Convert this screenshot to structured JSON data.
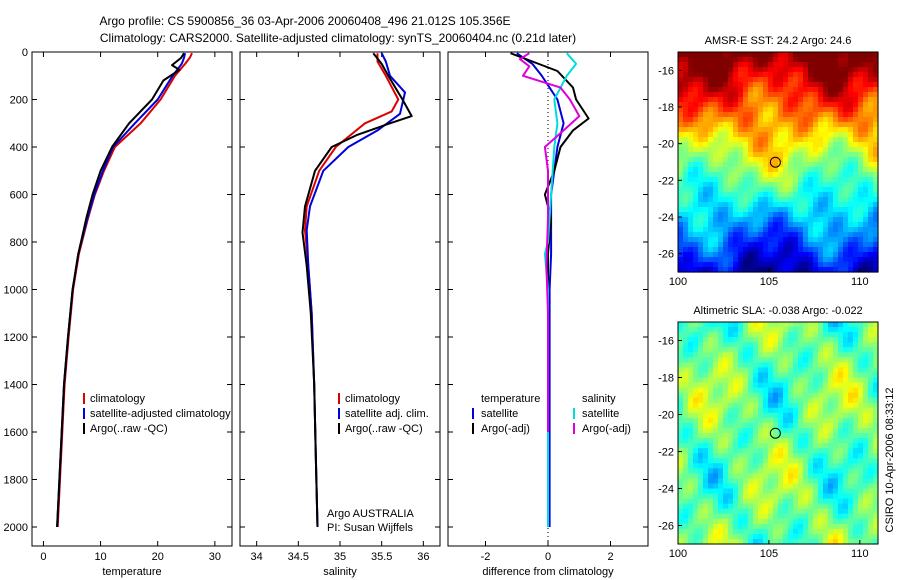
{
  "title": {
    "line1": "Argo profile: CS 5900856_36 03-Apr-2006 20060408_496 21.012S 105.356E",
    "line2": "Climatology: CARS2000. Satellite-adjusted climatology: synTS_20060404.nc (0.21d later)"
  },
  "side_label": "CSIRO 10-Apr-2006 08:33:12",
  "chart_data": [
    {
      "type": "line",
      "id": "temperature",
      "xlabel": "temperature",
      "ylabel": "",
      "xlim": [
        -2,
        33
      ],
      "ylim": [
        0,
        2080
      ],
      "y_reversed": true,
      "xticks": [
        0,
        10,
        20,
        30
      ],
      "xtick_labels": [
        "0",
        "10",
        "20",
        "30"
      ],
      "yticks": [
        0,
        200,
        400,
        600,
        800,
        1000,
        1200,
        1400,
        1600,
        1800,
        2000
      ],
      "ytick_labels": [
        "0",
        "200",
        "400",
        "600",
        "800",
        "1000",
        "1200",
        "1400",
        "1600",
        "1800",
        "2000"
      ],
      "legend": [
        "climatology",
        "satellite-adjusted climatology",
        "Argo(..raw -QC)"
      ],
      "series": [
        {
          "name": "climatology",
          "color": "#dd0000",
          "pairs": [
            [
              26.0,
              5
            ],
            [
              25.6,
              25
            ],
            [
              24.8,
              50
            ],
            [
              23.0,
              100
            ],
            [
              20.5,
              200
            ],
            [
              17.0,
              300
            ],
            [
              12.5,
              400
            ],
            [
              10.6,
              500
            ],
            [
              9.0,
              600
            ],
            [
              7.8,
              700
            ],
            [
              6.2,
              850
            ],
            [
              5.2,
              1000
            ],
            [
              4.4,
              1200
            ],
            [
              3.7,
              1400
            ],
            [
              3.3,
              1600
            ],
            [
              2.9,
              1800
            ],
            [
              2.5,
              2000
            ]
          ]
        },
        {
          "name": "satellite-adjusted climatology",
          "color": "#0000dd",
          "pairs": [
            [
              24.8,
              5
            ],
            [
              24.6,
              25
            ],
            [
              24.2,
              50
            ],
            [
              22.6,
              100
            ],
            [
              20.0,
              200
            ],
            [
              16.0,
              300
            ],
            [
              12.2,
              400
            ],
            [
              10.4,
              500
            ],
            [
              8.9,
              600
            ],
            [
              7.7,
              700
            ],
            [
              6.1,
              850
            ],
            [
              5.1,
              1000
            ],
            [
              4.3,
              1200
            ],
            [
              3.6,
              1400
            ],
            [
              3.2,
              1600
            ],
            [
              2.8,
              1800
            ],
            [
              2.4,
              2000
            ]
          ]
        },
        {
          "name": "Argo(..raw -QC)",
          "color": "#000000",
          "pairs": [
            [
              24.6,
              5
            ],
            [
              24.1,
              25
            ],
            [
              22.5,
              55
            ],
            [
              23.8,
              75
            ],
            [
              21.0,
              120
            ],
            [
              19.0,
              200
            ],
            [
              15.0,
              300
            ],
            [
              12.0,
              400
            ],
            [
              10.0,
              500
            ],
            [
              8.6,
              600
            ],
            [
              7.5,
              700
            ],
            [
              6.1,
              850
            ],
            [
              5.1,
              1000
            ],
            [
              4.3,
              1200
            ],
            [
              3.6,
              1400
            ],
            [
              3.2,
              1600
            ],
            [
              2.8,
              1800
            ],
            [
              2.4,
              2000
            ]
          ]
        }
      ]
    },
    {
      "type": "line",
      "id": "salinity",
      "xlabel": "salinity",
      "xlim": [
        33.8,
        36.2
      ],
      "ylim": [
        0,
        2080
      ],
      "y_reversed": true,
      "xticks": [
        34,
        34.5,
        35,
        35.5,
        36
      ],
      "xtick_labels": [
        "34",
        "34.5",
        "35",
        "35.5",
        "36"
      ],
      "legend": [
        "climatology",
        "satellite adj. clim.",
        "Argo(..raw -QC)"
      ],
      "annotation": [
        "Argo AUSTRALIA",
        "PI: Susan Wijffels"
      ],
      "series": [
        {
          "name": "climatology",
          "color": "#dd0000",
          "pairs": [
            [
              35.45,
              5
            ],
            [
              35.45,
              40
            ],
            [
              35.55,
              100
            ],
            [
              35.7,
              200
            ],
            [
              35.62,
              250
            ],
            [
              35.3,
              300
            ],
            [
              34.95,
              400
            ],
            [
              34.75,
              500
            ],
            [
              34.6,
              650
            ],
            [
              34.58,
              750
            ],
            [
              34.62,
              900
            ],
            [
              34.66,
              1100
            ],
            [
              34.69,
              1400
            ],
            [
              34.71,
              1700
            ],
            [
              34.73,
              2000
            ]
          ]
        },
        {
          "name": "satellite adj. clim.",
          "color": "#0000dd",
          "pairs": [
            [
              35.5,
              5
            ],
            [
              35.55,
              40
            ],
            [
              35.6,
              100
            ],
            [
              35.78,
              170
            ],
            [
              35.72,
              260
            ],
            [
              35.45,
              330
            ],
            [
              35.1,
              400
            ],
            [
              34.8,
              500
            ],
            [
              34.64,
              650
            ],
            [
              34.6,
              750
            ],
            [
              34.62,
              900
            ],
            [
              34.66,
              1100
            ],
            [
              34.69,
              1400
            ],
            [
              34.71,
              1700
            ],
            [
              34.73,
              2000
            ]
          ]
        },
        {
          "name": "Argo(..raw -QC)",
          "color": "#000000",
          "pairs": [
            [
              35.4,
              5
            ],
            [
              35.5,
              50
            ],
            [
              35.58,
              100
            ],
            [
              35.75,
              200
            ],
            [
              35.86,
              270
            ],
            [
              35.6,
              300
            ],
            [
              35.2,
              350
            ],
            [
              34.9,
              400
            ],
            [
              34.7,
              500
            ],
            [
              34.58,
              650
            ],
            [
              34.55,
              760
            ],
            [
              34.6,
              900
            ],
            [
              34.65,
              1100
            ],
            [
              34.69,
              1400
            ],
            [
              34.71,
              1700
            ],
            [
              34.73,
              2000
            ]
          ]
        }
      ]
    },
    {
      "type": "line",
      "id": "difference",
      "xlabel": "difference from climatology",
      "xlim": [
        -3.2,
        3.2
      ],
      "ylim": [
        0,
        2080
      ],
      "y_reversed": true,
      "xticks": [
        -2,
        0,
        2
      ],
      "xtick_labels": [
        "-2",
        "0",
        "2"
      ],
      "legend": [
        "temperature",
        "salinity",
        "satellite",
        "satellite",
        "Argo(-adj)",
        "Argo(-adj)"
      ],
      "series": [
        {
          "name": "temperature satellite",
          "color": "#0000dd",
          "pairs": [
            [
              -1.0,
              5
            ],
            [
              -0.5,
              50
            ],
            [
              -0.2,
              100
            ],
            [
              0.3,
              200
            ],
            [
              0.5,
              300
            ],
            [
              0.3,
              400
            ],
            [
              0.2,
              500
            ],
            [
              0.1,
              600
            ],
            [
              0.1,
              700
            ],
            [
              0.1,
              850
            ],
            [
              0.05,
              1000
            ],
            [
              0.05,
              1500
            ],
            [
              0.05,
              2000
            ]
          ]
        },
        {
          "name": "temperature Argo(-adj)",
          "color": "#000000",
          "pairs": [
            [
              -1.2,
              5
            ],
            [
              -0.5,
              40
            ],
            [
              0.3,
              80
            ],
            [
              0.8,
              150
            ],
            [
              0.9,
              200
            ],
            [
              1.3,
              280
            ],
            [
              0.8,
              330
            ],
            [
              0.4,
              400
            ],
            [
              0.2,
              500
            ],
            [
              -0.1,
              600
            ],
            [
              0.1,
              700
            ],
            [
              0.0,
              850
            ],
            [
              0.0,
              1200
            ],
            [
              0.0,
              2000
            ]
          ]
        },
        {
          "name": "salinity satellite",
          "color": "#00dddd",
          "pairs": [
            [
              0.6,
              5
            ],
            [
              0.9,
              50
            ],
            [
              0.6,
              100
            ],
            [
              0.2,
              200
            ],
            [
              0.3,
              300
            ],
            [
              0.2,
              400
            ],
            [
              0.1,
              600
            ],
            [
              0.0,
              800
            ],
            [
              -0.1,
              850
            ],
            [
              0.0,
              1000
            ],
            [
              0.0,
              1500
            ],
            [
              0.0,
              2000
            ]
          ]
        },
        {
          "name": "salinity Argo(-adj)",
          "color": "#dd00dd",
          "pairs": [
            [
              -0.6,
              5
            ],
            [
              -0.9,
              30
            ],
            [
              -0.6,
              60
            ],
            [
              -0.8,
              100
            ],
            [
              0.4,
              150
            ],
            [
              0.7,
              200
            ],
            [
              1.0,
              270
            ],
            [
              0.5,
              330
            ],
            [
              -0.1,
              400
            ],
            [
              0.0,
              500
            ],
            [
              0.0,
              700
            ],
            [
              -0.05,
              900
            ],
            [
              0.0,
              1100
            ],
            [
              0.0,
              1400
            ],
            [
              0.0,
              1600
            ]
          ]
        }
      ]
    },
    {
      "type": "heatmap",
      "id": "sst",
      "title": "AMSR-E SST: 24.2 Argo: 24.6",
      "xlim": [
        100,
        111
      ],
      "ylim": [
        -27,
        -15
      ],
      "xticks": [
        100,
        105,
        110
      ],
      "xtick_labels": [
        "100",
        "105",
        "110"
      ],
      "yticks": [
        -16,
        -18,
        -20,
        -22,
        -24,
        -26
      ],
      "ytick_labels": [
        "-16",
        "-18",
        "-20",
        "-22",
        "-24",
        "-26"
      ],
      "marker": {
        "lon": 105.356,
        "lat": -21.012
      }
    },
    {
      "type": "heatmap",
      "id": "sla",
      "title": "Altimetric SLA: -0.038 Argo: -0.022",
      "xlim": [
        100,
        111
      ],
      "ylim": [
        -27,
        -15
      ],
      "xticks": [
        100,
        105,
        110
      ],
      "xtick_labels": [
        "100",
        "105",
        "110"
      ],
      "yticks": [
        -16,
        -18,
        -20,
        -22,
        -24,
        -26
      ],
      "ytick_labels": [
        "-16",
        "-18",
        "-20",
        "-22",
        "-24",
        "-26"
      ],
      "marker": {
        "lon": 105.356,
        "lat": -21.012
      }
    }
  ]
}
